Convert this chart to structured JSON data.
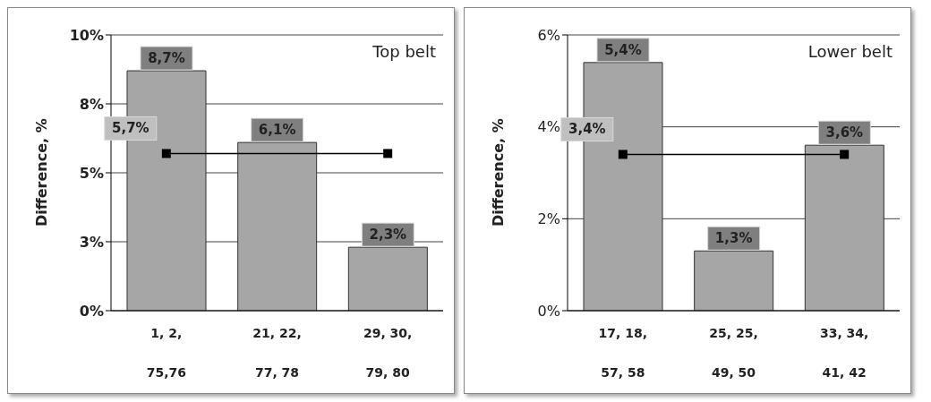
{
  "chart_data": [
    {
      "type": "bar",
      "title": "Top belt",
      "ylabel": "Difference, %",
      "categories": [
        "1, 2,\n75,76",
        "21, 22,\n77, 78",
        "29, 30,\n79, 80"
      ],
      "series": [
        {
          "color": "#a6a6a6",
          "values": [
            8.7,
            6.1,
            2.3
          ],
          "value_labels": [
            "8,7%",
            "6,1%",
            "2,3%"
          ]
        },
        {
          "type": "line",
          "color": "#000000",
          "values": [
            5.7,
            null,
            5.7
          ],
          "value_labels": [
            "5,7%",
            null,
            null
          ]
        }
      ],
      "ylim": [
        0,
        10
      ],
      "yticks": [
        {
          "value": 0,
          "label": "0%"
        },
        {
          "value": 2.5,
          "label": "3%"
        },
        {
          "value": 5,
          "label": "5%"
        },
        {
          "value": 7.5,
          "label": "8%"
        },
        {
          "value": 10,
          "label": "10%"
        }
      ],
      "grid": "y",
      "marker": "square",
      "legend": false
    },
    {
      "type": "bar",
      "title": "Lower belt",
      "ylabel": "Difference, %",
      "categories": [
        "17, 18,\n57, 58",
        "25, 25,\n49, 50",
        "33, 34,\n41, 42"
      ],
      "series": [
        {
          "color": "#a6a6a6",
          "values": [
            5.4,
            1.3,
            3.6
          ],
          "value_labels": [
            "5,4%",
            "1,3%",
            "3,6%"
          ]
        },
        {
          "type": "line",
          "color": "#000000",
          "values": [
            3.4,
            null,
            3.4
          ],
          "value_labels": [
            "3,4%",
            null,
            null
          ]
        }
      ],
      "ylim": [
        0,
        6
      ],
      "yticks": [
        {
          "value": 0,
          "label": "0%"
        },
        {
          "value": 2,
          "label": "2%"
        },
        {
          "value": 4,
          "label": "4%"
        },
        {
          "value": 6,
          "label": "6%"
        }
      ],
      "grid": "y",
      "marker": "square",
      "legend": false
    }
  ]
}
